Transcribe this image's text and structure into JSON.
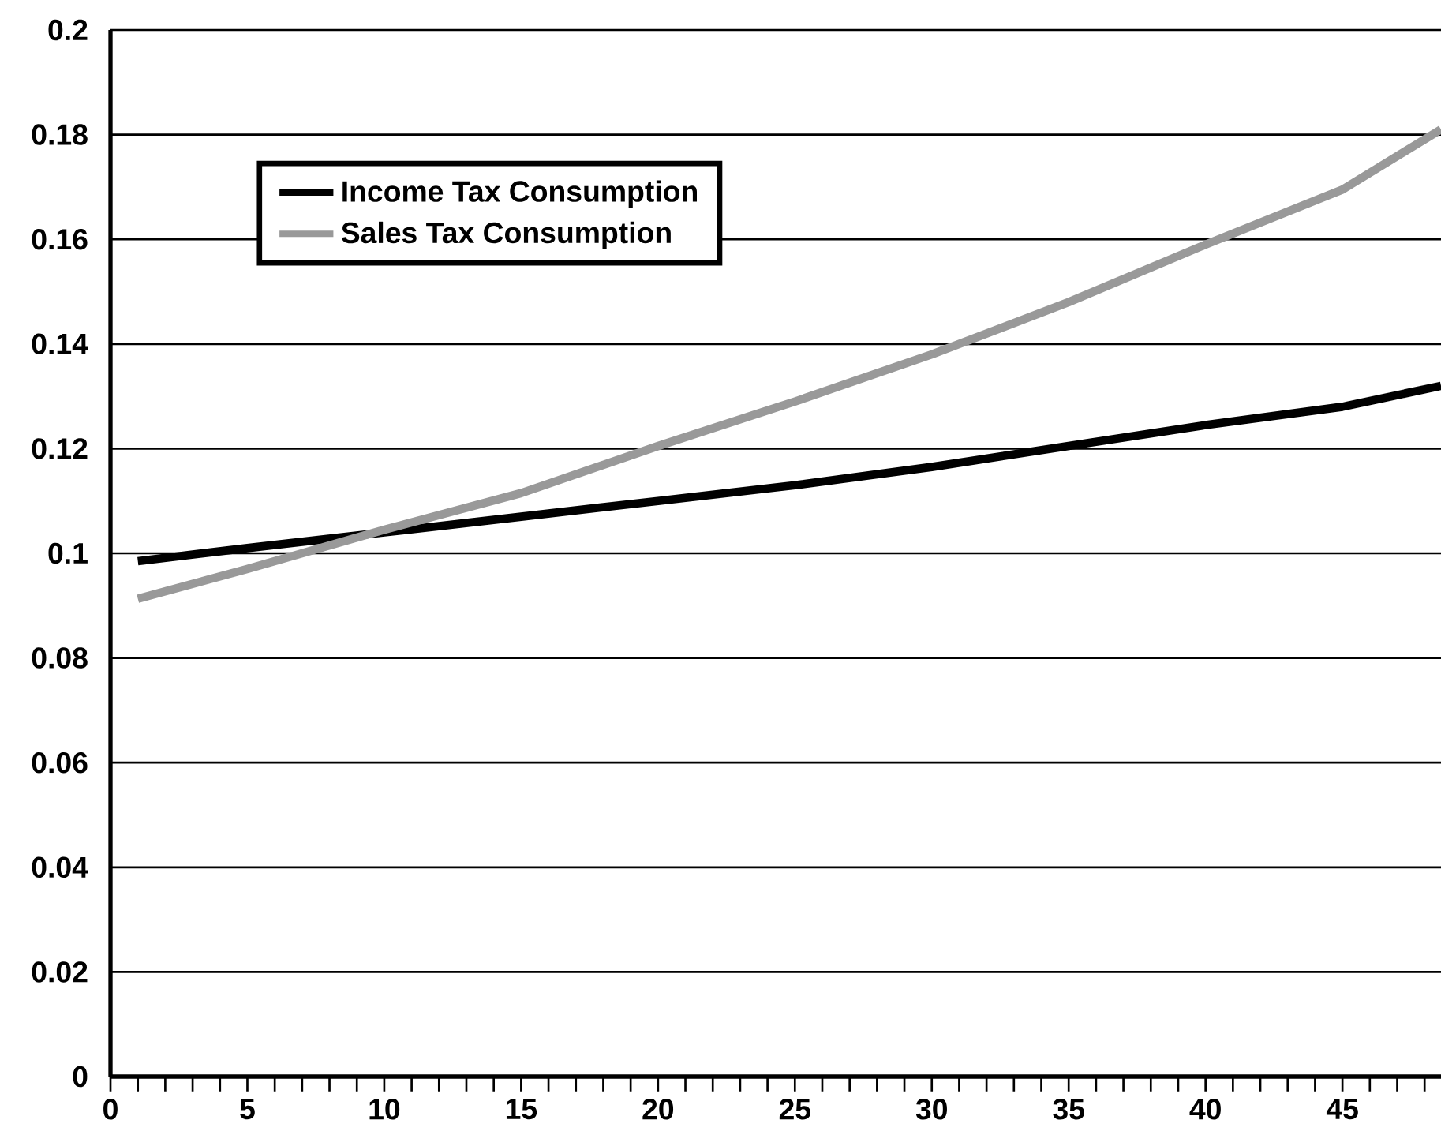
{
  "chart_data": {
    "type": "line",
    "xlim": [
      0,
      48.6
    ],
    "ylim": [
      0,
      0.2
    ],
    "xticks": [
      0,
      {
        "value": 1,
        "label": null
      },
      {
        "value": 2,
        "label": null
      },
      {
        "value": 3,
        "label": null
      },
      {
        "value": 4,
        "label": null
      },
      5,
      {
        "value": 6,
        "label": null
      },
      {
        "value": 7,
        "label": null
      },
      {
        "value": 8,
        "label": null
      },
      {
        "value": 9,
        "label": null
      },
      10,
      {
        "value": 11,
        "label": null
      },
      {
        "value": 12,
        "label": null
      },
      {
        "value": 13,
        "label": null
      },
      {
        "value": 14,
        "label": null
      },
      15,
      {
        "value": 16,
        "label": null
      },
      {
        "value": 17,
        "label": null
      },
      {
        "value": 18,
        "label": null
      },
      {
        "value": 19,
        "label": null
      },
      20,
      {
        "value": 21,
        "label": null
      },
      {
        "value": 22,
        "label": null
      },
      {
        "value": 23,
        "label": null
      },
      {
        "value": 24,
        "label": null
      },
      25,
      {
        "value": 26,
        "label": null
      },
      {
        "value": 27,
        "label": null
      },
      {
        "value": 28,
        "label": null
      },
      {
        "value": 29,
        "label": null
      },
      30,
      {
        "value": 31,
        "label": null
      },
      {
        "value": 32,
        "label": null
      },
      {
        "value": 33,
        "label": null
      },
      {
        "value": 34,
        "label": null
      },
      35,
      {
        "value": 36,
        "label": null
      },
      {
        "value": 37,
        "label": null
      },
      {
        "value": 38,
        "label": null
      },
      {
        "value": 39,
        "label": null
      },
      40,
      {
        "value": 41,
        "label": null
      },
      {
        "value": 42,
        "label": null
      },
      {
        "value": 43,
        "label": null
      },
      {
        "value": 44,
        "label": null
      },
      45,
      {
        "value": 46,
        "label": null
      },
      {
        "value": 47,
        "label": null
      },
      {
        "value": 48,
        "label": null
      }
    ],
    "yticks": [
      0,
      0.02,
      0.04,
      0.06,
      0.08,
      0.1,
      0.12,
      0.14,
      0.16,
      0.18,
      0.2
    ],
    "grid": "y",
    "legend": "top left",
    "marker": "none",
    "line_style": "solid",
    "x": [
      1,
      5,
      10,
      15,
      20,
      25,
      30,
      35,
      40,
      45,
      48.6
    ],
    "series": [
      {
        "name": "Income Tax Consumption",
        "color": "#000000",
        "values": [
          0.0985,
          0.101,
          0.104,
          0.107,
          0.11,
          0.113,
          0.1165,
          0.1205,
          0.1245,
          0.128,
          0.132
        ]
      },
      {
        "name": "Sales Tax Consumption",
        "color": "#999999",
        "values": [
          0.0913,
          0.097,
          0.1045,
          0.1115,
          0.1205,
          0.129,
          0.138,
          0.148,
          0.159,
          0.1695,
          0.181
        ]
      }
    ]
  }
}
